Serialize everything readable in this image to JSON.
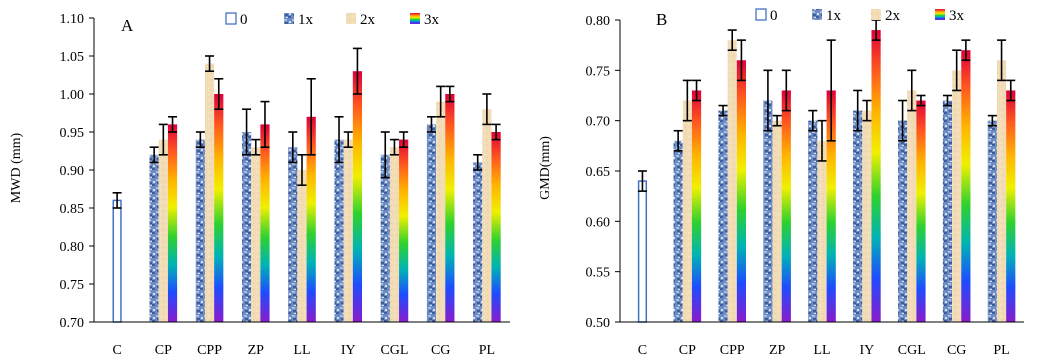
{
  "colors": {
    "axis": "#000000",
    "control_stroke": "#4472c4",
    "blue_pattern": [
      "#3d5e9a",
      "#6d8cc4",
      "#a9bce0",
      "#d6e0f2"
    ],
    "beige": "#f2dcb6",
    "rainbow": [
      "#e0003a",
      "#ff5a1e",
      "#ffb400",
      "#f0f000",
      "#2ed12e",
      "#00b4b4",
      "#1e4cff",
      "#8a1ccc"
    ]
  },
  "chart_data": [
    {
      "type": "bar",
      "panel_label": "A",
      "ylabel": "MWD (mm)",
      "xlabel": "",
      "ylim": [
        0.7,
        1.1
      ],
      "yticks": [
        "0.70",
        "0.75",
        "0.80",
        "0.85",
        "0.90",
        "0.95",
        "1.00",
        "1.05",
        "1.10"
      ],
      "grid": false,
      "legend_position": "top",
      "categories": [
        "C",
        "CP",
        "CPP",
        "ZP",
        "LL",
        "IY",
        "CGL",
        "CG",
        "PL"
      ],
      "series": [
        {
          "name": "0",
          "values": [
            0.86,
            null,
            null,
            null,
            null,
            null,
            null,
            null,
            null
          ],
          "errors": [
            0.01,
            null,
            null,
            null,
            null,
            null,
            null,
            null,
            null
          ]
        },
        {
          "name": "1x",
          "values": [
            null,
            0.92,
            0.94,
            0.95,
            0.93,
            0.94,
            0.92,
            0.96,
            0.91
          ],
          "errors": [
            null,
            0.01,
            0.01,
            0.03,
            0.02,
            0.03,
            0.03,
            0.01,
            0.01
          ]
        },
        {
          "name": "2x",
          "values": [
            null,
            0.94,
            1.04,
            0.93,
            0.9,
            0.94,
            0.93,
            0.99,
            0.98
          ],
          "errors": [
            null,
            0.02,
            0.01,
            0.01,
            0.02,
            0.01,
            0.01,
            0.02,
            0.02
          ]
        },
        {
          "name": "3x",
          "values": [
            null,
            0.96,
            1.0,
            0.96,
            0.97,
            1.03,
            0.94,
            1.0,
            0.95
          ],
          "errors": [
            null,
            0.01,
            0.02,
            0.03,
            0.05,
            0.03,
            0.01,
            0.01,
            0.01
          ]
        }
      ]
    },
    {
      "type": "bar",
      "panel_label": "B",
      "ylabel": "GMD(mm)",
      "xlabel": "",
      "ylim": [
        0.5,
        0.8
      ],
      "yticks": [
        "0.50",
        "0.55",
        "0.60",
        "0.65",
        "0.70",
        "0.75",
        "0.80"
      ],
      "grid": false,
      "legend_position": "top",
      "categories": [
        "C",
        "CP",
        "CPP",
        "ZP",
        "LL",
        "IY",
        "CGL",
        "CG",
        "PL"
      ],
      "series": [
        {
          "name": "0",
          "values": [
            0.64,
            null,
            null,
            null,
            null,
            null,
            null,
            null,
            null
          ],
          "errors": [
            0.01,
            null,
            null,
            null,
            null,
            null,
            null,
            null,
            null
          ]
        },
        {
          "name": "1x",
          "values": [
            null,
            0.68,
            0.71,
            0.72,
            0.7,
            0.71,
            0.7,
            0.72,
            0.7
          ],
          "errors": [
            null,
            0.01,
            0.005,
            0.03,
            0.01,
            0.02,
            0.02,
            0.005,
            0.005
          ]
        },
        {
          "name": "2x",
          "values": [
            null,
            0.72,
            0.78,
            0.7,
            0.68,
            0.71,
            0.73,
            0.75,
            0.76
          ],
          "errors": [
            null,
            0.02,
            0.01,
            0.005,
            0.02,
            0.01,
            0.02,
            0.02,
            0.02
          ]
        },
        {
          "name": "3x",
          "values": [
            null,
            0.73,
            0.76,
            0.73,
            0.73,
            0.79,
            0.72,
            0.77,
            0.73
          ],
          "errors": [
            null,
            0.01,
            0.02,
            0.02,
            0.05,
            0.01,
            0.005,
            0.01,
            0.01
          ]
        }
      ]
    }
  ]
}
